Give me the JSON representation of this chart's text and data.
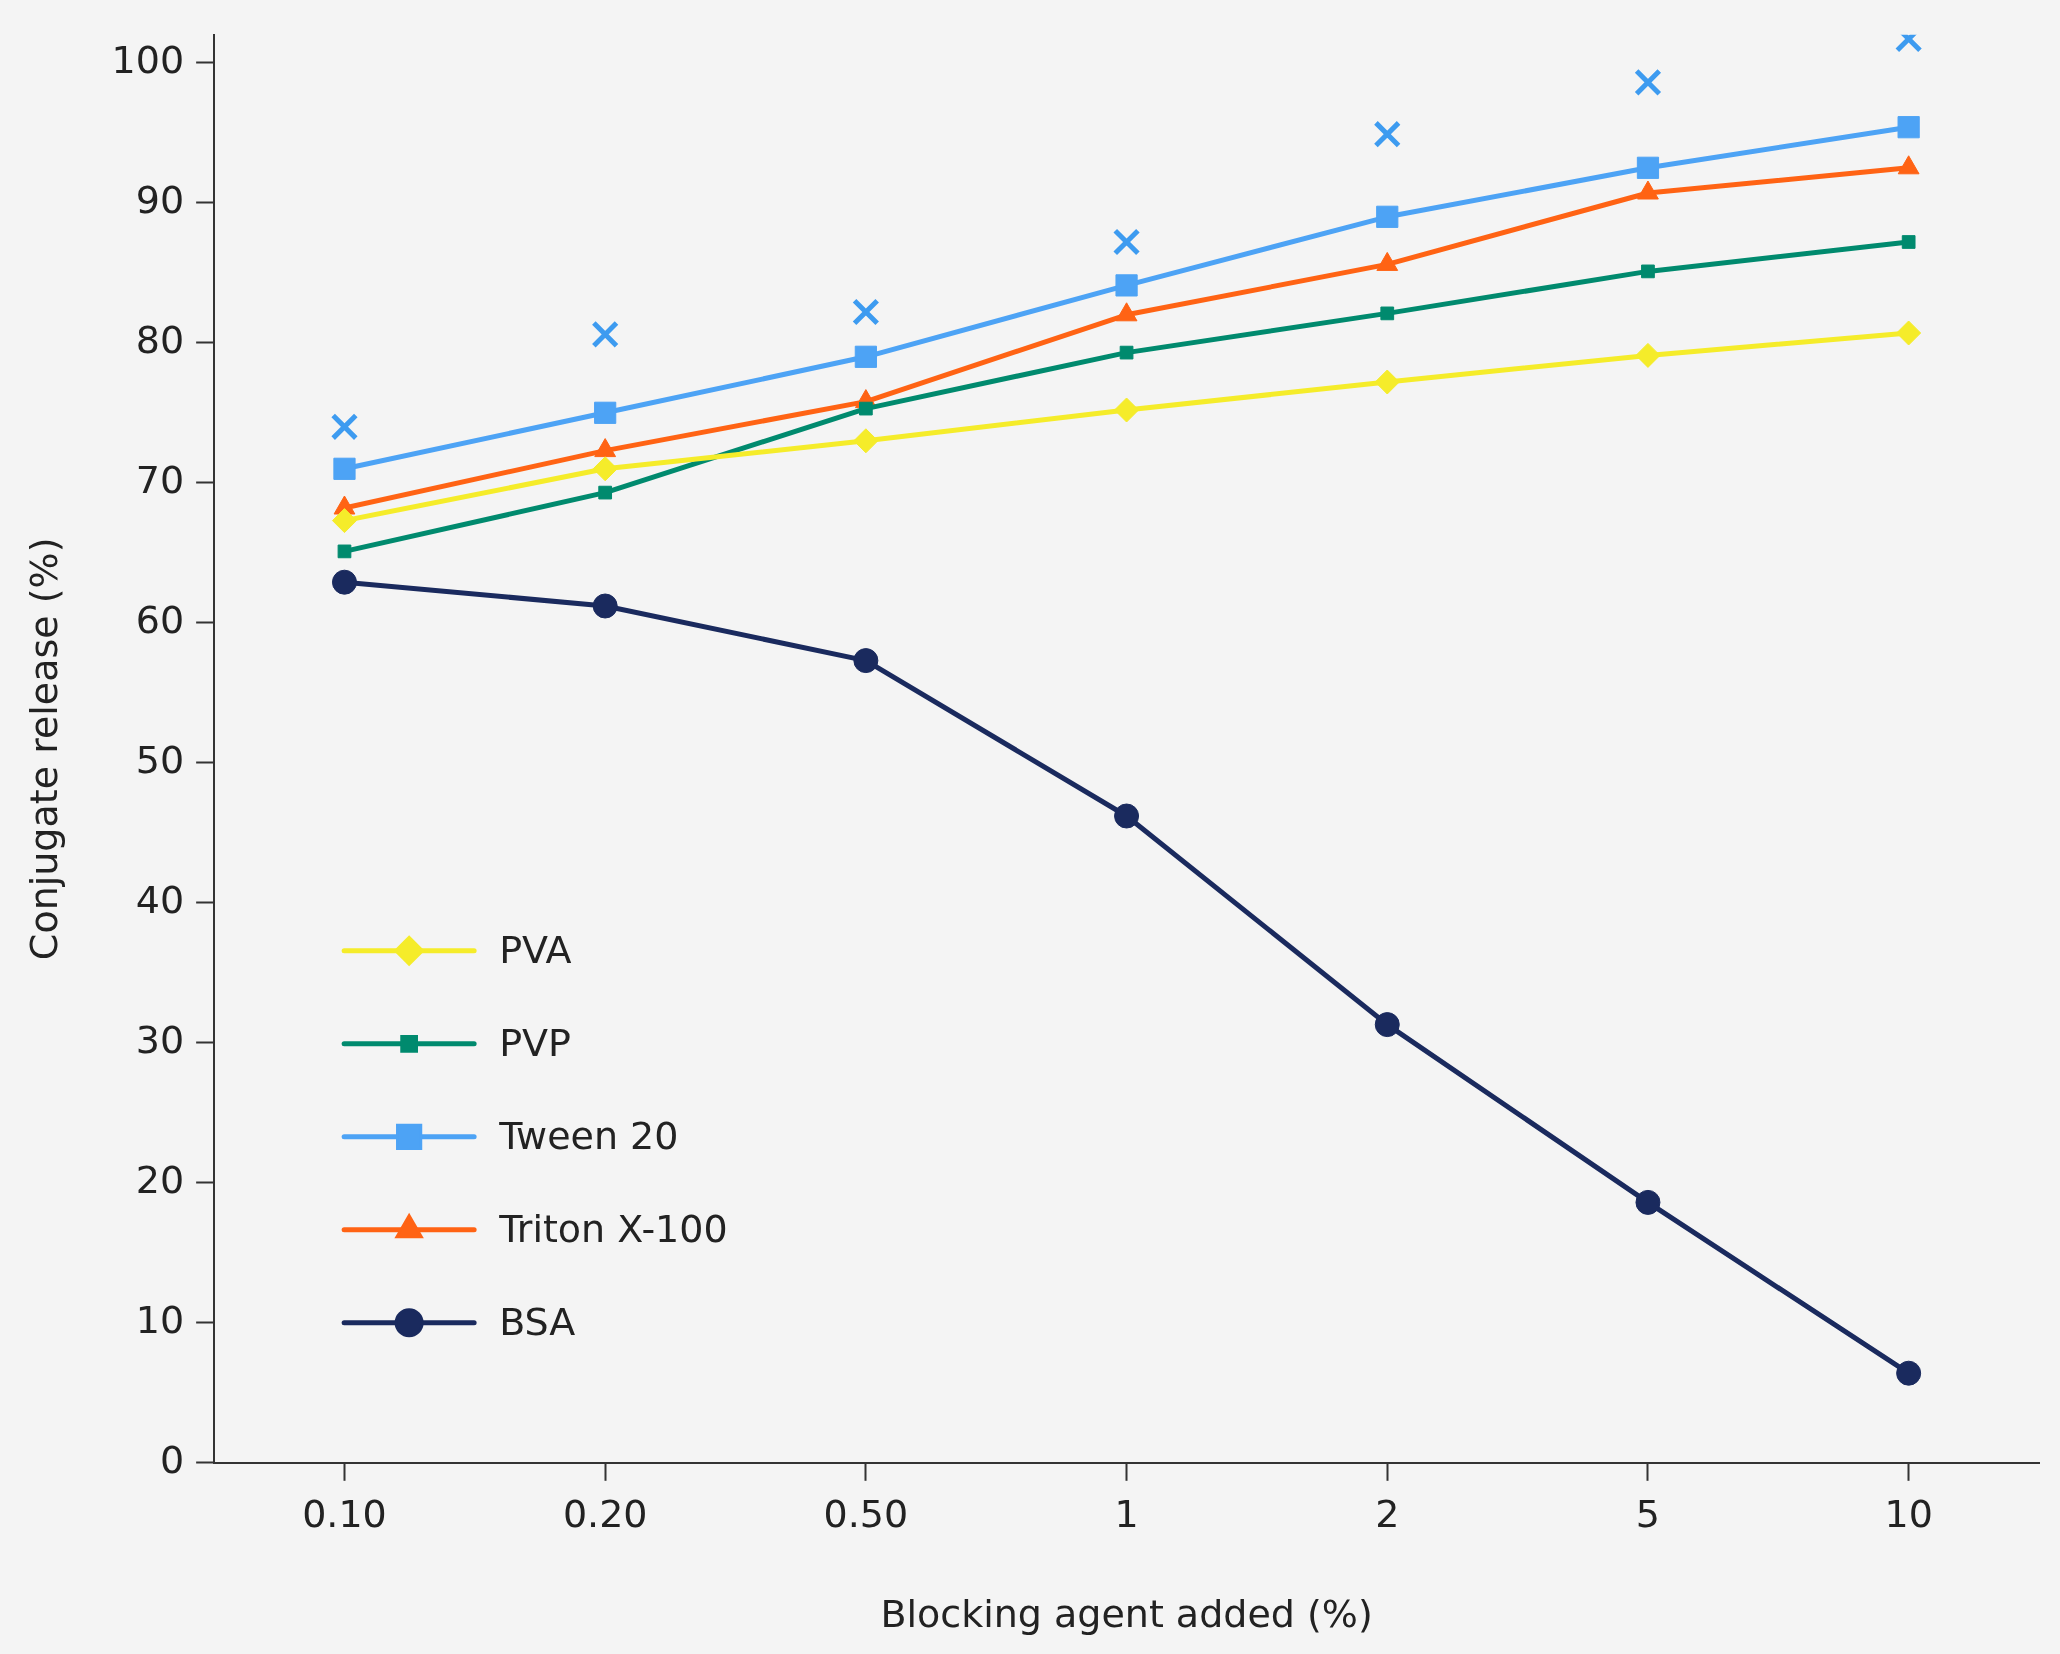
{
  "chart_data": {
    "type": "line",
    "xlabel": "Blocking agent added (%)",
    "ylabel": "Conjugate release (%)",
    "categories": [
      "0.10",
      "0.20",
      "0.50",
      "1",
      "2",
      "5",
      "10"
    ],
    "ylim": [
      0,
      102
    ],
    "yticks": [
      0,
      10,
      20,
      30,
      40,
      50,
      60,
      70,
      80,
      90,
      100
    ],
    "grid": false,
    "legend": "bottom left",
    "series": [
      {
        "name": "PVA",
        "color": "#f5ec2a",
        "marker": "diamond",
        "values": [
          67.3,
          71.0,
          73.0,
          75.2,
          77.2,
          79.1,
          80.7
        ]
      },
      {
        "name": "PVP",
        "color": "#008a6e",
        "marker": "square",
        "values": [
          65.1,
          69.3,
          75.3,
          79.3,
          82.1,
          85.1,
          87.2
        ]
      },
      {
        "name": "Tween 20",
        "color": "#4da3f5",
        "marker": "square",
        "values": [
          71.0,
          75.0,
          79.0,
          84.1,
          89.0,
          92.5,
          95.4
        ]
      },
      {
        "name": "Triton X-100",
        "color": "#ff6314",
        "marker": "triangle",
        "values": [
          68.2,
          72.3,
          75.8,
          82.0,
          85.6,
          90.7,
          92.5
        ]
      },
      {
        "name": "BSA",
        "color": "#1a2a5e",
        "marker": "circle",
        "values": [
          62.9,
          61.2,
          57.3,
          46.2,
          31.3,
          18.6,
          6.4
        ]
      },
      {
        "type": "scatter",
        "color": "#3d9bf0",
        "marker": "cross",
        "x": [
          "0.10",
          "0.20",
          "0.50",
          "1",
          "2",
          "5",
          "10"
        ],
        "values": [
          74.0,
          80.6,
          82.2,
          87.2,
          94.9,
          98.6,
          101.7
        ]
      }
    ]
  }
}
